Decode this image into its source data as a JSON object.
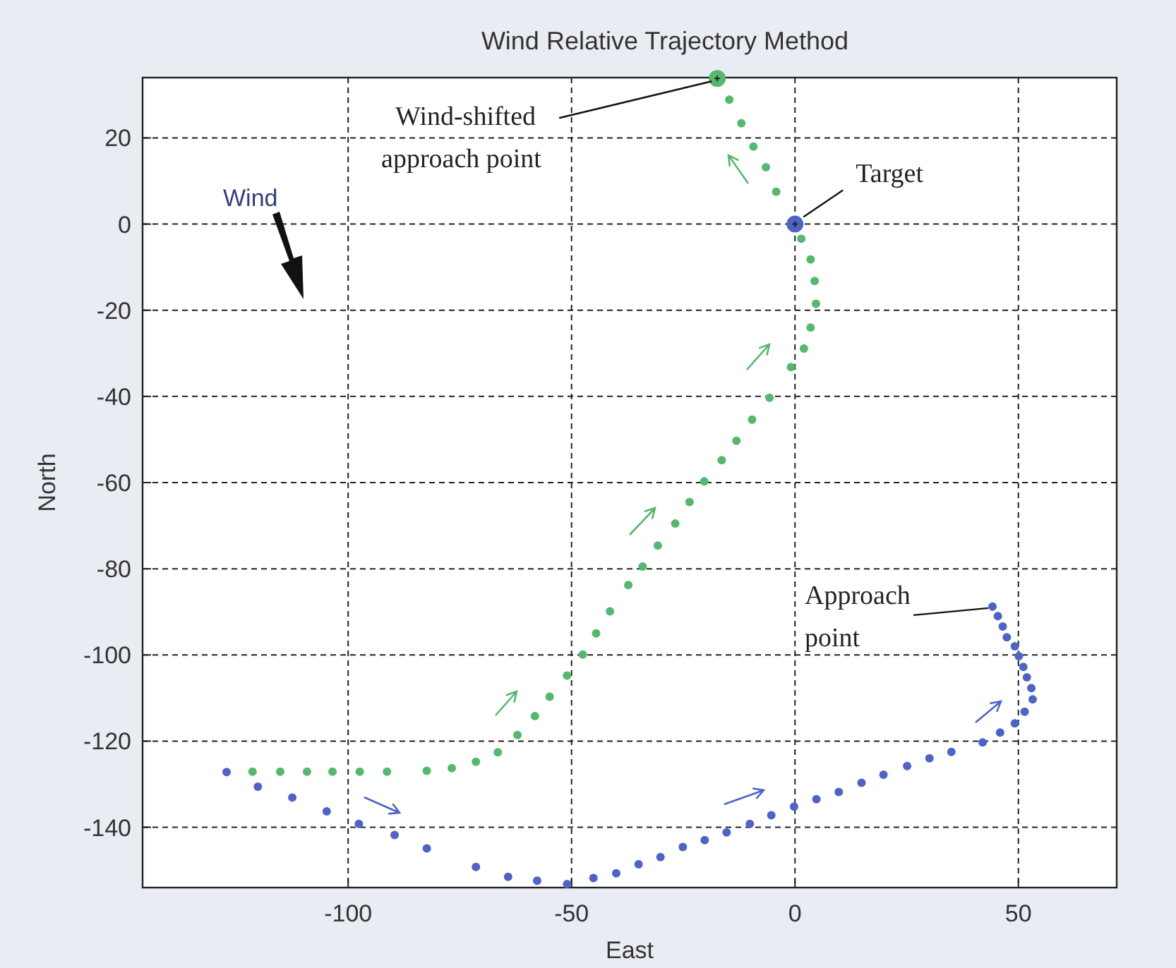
{
  "chart_data": {
    "type": "scatter",
    "title": "Wind Relative Trajectory Method",
    "xlabel": "East",
    "ylabel": "North",
    "xlim": [
      -146,
      72
    ],
    "ylim": [
      -154,
      34
    ],
    "xticks": [
      -100,
      -50,
      0,
      50
    ],
    "yticks": [
      20,
      0,
      -20,
      -40,
      -60,
      -80,
      -100,
      -120,
      -140
    ],
    "grid": true,
    "marker": "circle",
    "series": [
      {
        "color": "#55b86e",
        "x": [
          -121.4,
          -115.2,
          -109.2,
          -103.5,
          -97.4,
          -91.3,
          -82.4,
          -76.8,
          -71.4,
          -66.5,
          -62.1,
          -58.2,
          -54.9,
          -51,
          -47.5,
          -44.5,
          -41.4,
          -37.3,
          -34.1,
          -30.7,
          -26.8,
          -23.6,
          -20.3,
          -16.4,
          -13.1,
          -9.6,
          -5.7,
          -0.9,
          2,
          3.5,
          4.7,
          4.4,
          3.5,
          1.4,
          -4.2,
          -6.5,
          -9.3,
          -12,
          -14.7
        ],
        "values": [
          -127.1,
          -127.1,
          -127.1,
          -127.1,
          -127.1,
          -127.1,
          -126.9,
          -126.3,
          -124.8,
          -122.6,
          -118.6,
          -114.2,
          -109.7,
          -104.8,
          -99.9,
          -95,
          -89.9,
          -83.8,
          -79.5,
          -74.6,
          -69.5,
          -64.5,
          -59.7,
          -54.8,
          -50.3,
          -45.4,
          -40.3,
          -33.2,
          -28.9,
          -24,
          -18.5,
          -13.2,
          -8.2,
          -3.4,
          7.5,
          13.2,
          18,
          23.4,
          28.9
        ]
      },
      {
        "color": "#4f63c4",
        "x": [
          -127.2,
          -120.2,
          -112.5,
          -104.8,
          -97.6,
          -89.6,
          -82.4,
          -71.4,
          -64.2,
          -57.7,
          -51,
          -45.1,
          -40,
          -35,
          -30.1,
          -25.1,
          -20.2,
          -15.3,
          -10.1,
          -5.3,
          -0.2,
          4.8,
          9.8,
          14.9,
          19.8,
          25.1,
          30.1,
          35,
          42,
          45.9,
          49.2,
          51.4,
          53.2,
          52.9,
          51.9,
          51.1,
          50.1,
          49.2,
          47.4,
          46.5,
          45.4,
          44.2
        ],
        "values": [
          -127.2,
          -130.6,
          -133.1,
          -136.3,
          -139.2,
          -141.8,
          -144.9,
          -149.2,
          -151.5,
          -152.4,
          -153.2,
          -151.8,
          -150.7,
          -148.6,
          -146.9,
          -144.6,
          -143,
          -141.2,
          -139.2,
          -137.2,
          -135.2,
          -133.5,
          -131.8,
          -129.7,
          -127.8,
          -125.8,
          -124,
          -122.5,
          -120.3,
          -118,
          -115.9,
          -113.2,
          -110.3,
          -107.7,
          -105.2,
          -102.8,
          -100.3,
          -98,
          -95.9,
          -93.4,
          -91,
          -88.8
        ]
      },
      {
        "color": "#55b86e",
        "x": [
          -17.4
        ],
        "values": [
          33.8
        ]
      },
      {
        "color": "#4f63c4",
        "x": [
          0
        ],
        "values": [
          0
        ]
      }
    ],
    "annotations": [
      {
        "text": "Wind-shifted approach point",
        "x": -17.4,
        "y": 33.8
      },
      {
        "text": "Target",
        "x": 0,
        "y": 0
      },
      {
        "text": "Approach point",
        "x": 44.2,
        "y": -88.8
      },
      "Wind"
    ]
  }
}
